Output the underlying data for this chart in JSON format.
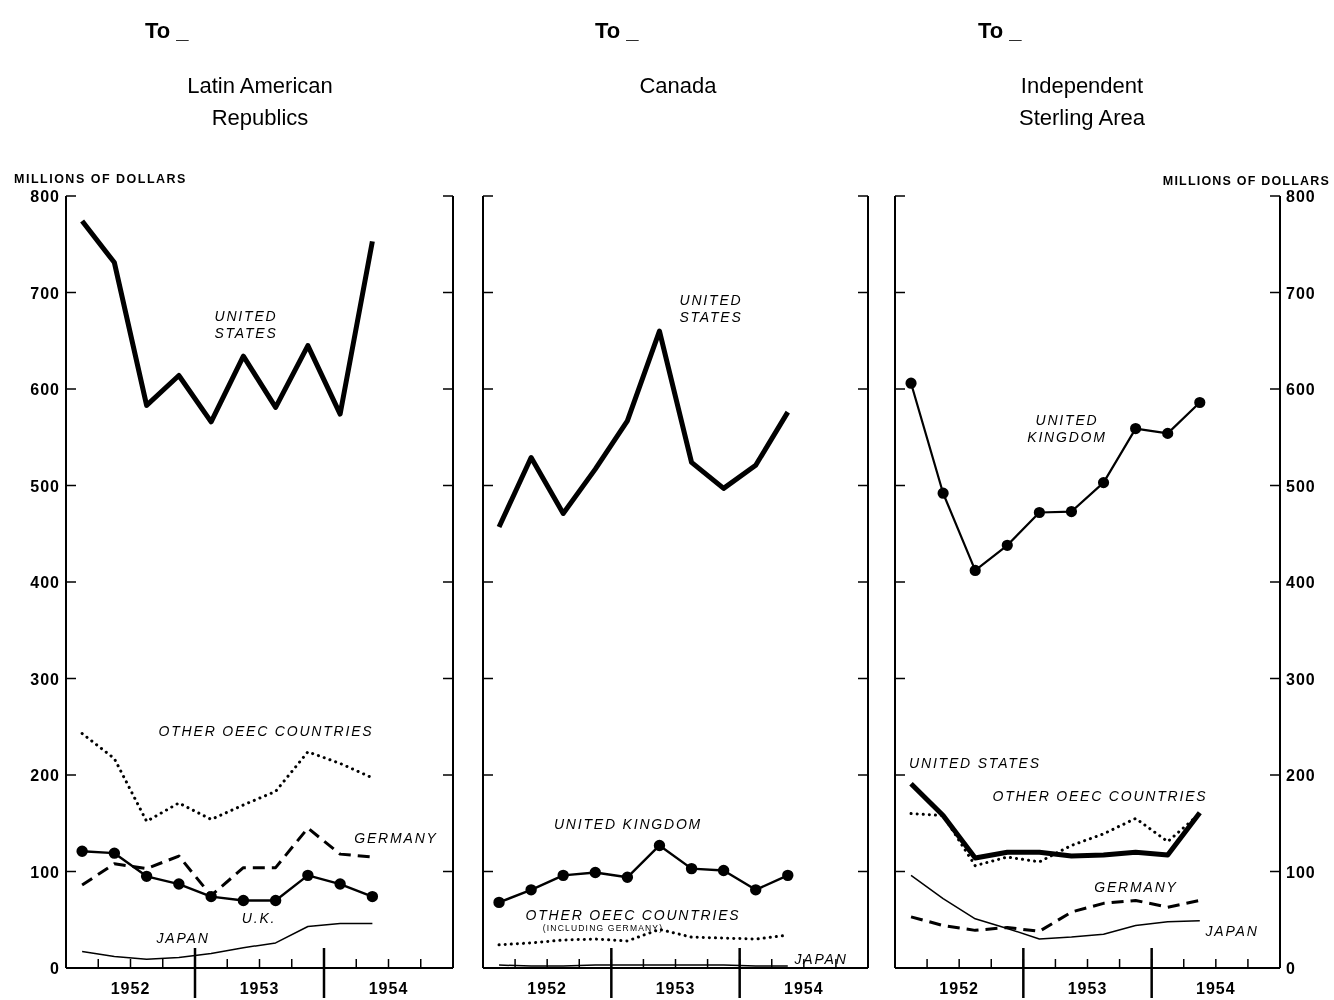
{
  "chart_data": [
    {
      "type": "line",
      "title": "To _",
      "subtitle": "Latin American Republics",
      "ylabel": "MILLIONS OF DOLLARS",
      "x": [
        1952.125,
        1952.375,
        1952.625,
        1952.875,
        1953.125,
        1953.375,
        1953.625,
        1953.875,
        1954.125,
        1954.375
      ],
      "xlim": [
        1952,
        1955
      ],
      "xticks": [
        {
          "value": 1952.25,
          "label": null
        },
        {
          "value": 1952.5,
          "label": "1952"
        },
        {
          "value": 1952.75,
          "label": null
        },
        {
          "value": 1953,
          "label": null
        },
        {
          "value": 1953.25,
          "label": null
        },
        {
          "value": 1953.5,
          "label": "1953"
        },
        {
          "value": 1953.75,
          "label": null
        },
        {
          "value": 1954,
          "label": null
        },
        {
          "value": 1954.25,
          "label": null
        },
        {
          "value": 1954.5,
          "label": "1954"
        },
        {
          "value": 1954.75,
          "label": null
        }
      ],
      "ylim": [
        0,
        800
      ],
      "yticks": [
        0,
        100,
        200,
        300,
        400,
        500,
        600,
        700,
        800
      ],
      "series": [
        {
          "name": "UNITED STATES",
          "color": "#000000",
          "line_style": "solid",
          "values": [
            774,
            731,
            583,
            614,
            566,
            634,
            581,
            645,
            574,
            753
          ]
        },
        {
          "name": "OTHER OEEC COUNTRIES",
          "color": "#000000",
          "line_style": "dotted",
          "values": [
            243,
            217,
            152,
            171,
            154,
            169,
            183,
            224,
            212,
            197
          ]
        },
        {
          "name": "GERMANY",
          "color": "#000000",
          "line_style": "dashed",
          "values": [
            86,
            108,
            103,
            116,
            75,
            104,
            104,
            145,
            118,
            115
          ]
        },
        {
          "name": "U.K.",
          "color": "#000000",
          "line_style": "solid",
          "marker": "circle",
          "values": [
            121,
            119,
            95,
            87,
            74,
            70,
            70,
            96,
            87,
            74
          ]
        },
        {
          "name": "JAPAN",
          "color": "#000000",
          "line_style": "solid",
          "values": [
            17,
            12,
            9,
            11,
            15,
            21,
            26,
            43,
            46,
            46
          ]
        }
      ]
    },
    {
      "type": "line",
      "title": "To _",
      "subtitle": "Canada",
      "annotations": [
        "(INCLUDING GERMANY)"
      ],
      "tick_labels": "x",
      "x": [
        1952.125,
        1952.375,
        1952.625,
        1952.875,
        1953.125,
        1953.375,
        1953.625,
        1953.875,
        1954.125,
        1954.375
      ],
      "xlim": [
        1952,
        1955
      ],
      "xticks": [
        {
          "value": 1952.25,
          "label": null
        },
        {
          "value": 1952.5,
          "label": "1952"
        },
        {
          "value": 1952.75,
          "label": null
        },
        {
          "value": 1953,
          "label": null
        },
        {
          "value": 1953.25,
          "label": null
        },
        {
          "value": 1953.5,
          "label": "1953"
        },
        {
          "value": 1953.75,
          "label": null
        },
        {
          "value": 1954,
          "label": null
        },
        {
          "value": 1954.25,
          "label": null
        },
        {
          "value": 1954.5,
          "label": "1954"
        },
        {
          "value": 1954.75,
          "label": null
        }
      ],
      "ylim": [
        0,
        800
      ],
      "yticks": [
        0,
        100,
        200,
        300,
        400,
        500,
        600,
        700,
        800
      ],
      "series": [
        {
          "name": "UNITED STATES",
          "color": "#000000",
          "line_style": "solid",
          "values": [
            457,
            529,
            471,
            517,
            567,
            660,
            524,
            497,
            521,
            576
          ]
        },
        {
          "name": "UNITED KINGDOM",
          "color": "#000000",
          "line_style": "solid",
          "marker": "circle",
          "values": [
            68,
            81,
            96,
            99,
            94,
            127,
            103,
            101,
            81,
            96
          ]
        },
        {
          "name": "OTHER OEEC COUNTRIES",
          "color": "#000000",
          "line_style": "dotted",
          "values": [
            24,
            26,
            29,
            30,
            28,
            40,
            32,
            31,
            30,
            34
          ]
        },
        {
          "name": "JAPAN",
          "color": "#000000",
          "line_style": "solid",
          "values": [
            3,
            2,
            2,
            3,
            3,
            3,
            3,
            3,
            2,
            2
          ]
        }
      ]
    },
    {
      "type": "line",
      "title": "To _",
      "subtitle": "Independent Sterling Area",
      "y2label": "MILLIONS OF DOLLARS",
      "x": [
        1952.125,
        1952.375,
        1952.625,
        1952.875,
        1953.125,
        1953.375,
        1953.625,
        1953.875,
        1954.125,
        1954.375
      ],
      "xlim": [
        1952,
        1955
      ],
      "xticks": [
        {
          "value": 1952.25,
          "label": null
        },
        {
          "value": 1952.5,
          "label": "1952"
        },
        {
          "value": 1952.75,
          "label": null
        },
        {
          "value": 1953,
          "label": null
        },
        {
          "value": 1953.25,
          "label": null
        },
        {
          "value": 1953.5,
          "label": "1953"
        },
        {
          "value": 1953.75,
          "label": null
        },
        {
          "value": 1954,
          "label": null
        },
        {
          "value": 1954.25,
          "label": null
        },
        {
          "value": 1954.5,
          "label": "1954"
        },
        {
          "value": 1954.75,
          "label": null
        }
      ],
      "y2lim": [
        0,
        800
      ],
      "y2ticks": [
        0,
        100,
        200,
        300,
        400,
        500,
        600,
        700,
        800
      ],
      "series": [
        {
          "name": "UNITED KINGDOM",
          "color": "#000000",
          "line_style": "solid",
          "marker": "circle",
          "axis": "y2",
          "values": [
            606,
            492,
            412,
            438,
            472,
            473,
            503,
            559,
            554,
            586
          ]
        },
        {
          "name": "UNITED STATES",
          "color": "#000000",
          "line_style": "solid",
          "axis": "y2",
          "values": [
            191,
            158,
            114,
            120,
            120,
            116,
            117,
            120,
            117,
            161
          ]
        },
        {
          "name": "OTHER OEEC COUNTRIES",
          "color": "#000000",
          "line_style": "dotted",
          "axis": "y2",
          "values": [
            160,
            158,
            106,
            115,
            110,
            127,
            139,
            155,
            131,
            160
          ]
        },
        {
          "name": "GERMANY",
          "color": "#000000",
          "line_style": "dashed",
          "axis": "y2",
          "values": [
            53,
            44,
            39,
            42,
            38,
            58,
            67,
            70,
            63,
            70
          ]
        },
        {
          "name": "JAPAN",
          "color": "#000000",
          "line_style": "solid",
          "axis": "y2",
          "values": [
            96,
            72,
            51,
            41,
            30,
            32,
            35,
            44,
            48,
            49
          ]
        }
      ]
    }
  ]
}
